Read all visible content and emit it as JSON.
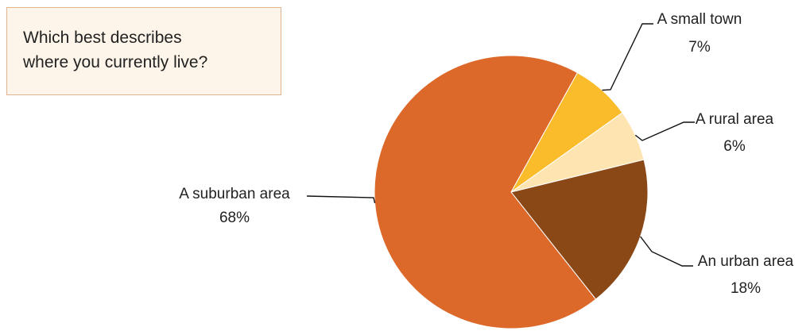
{
  "chart_data": {
    "type": "pie",
    "title_lines": [
      "Which best describes",
      "where you currently live?"
    ],
    "slices": [
      {
        "name": "A small town",
        "value": 7,
        "label": "7%",
        "color": "#fbbc2c"
      },
      {
        "name": "A rural area",
        "value": 6,
        "label": "6%",
        "color": "#fde4b0"
      },
      {
        "name": "An urban area",
        "value": 18,
        "label": "18%",
        "color": "#8b4817"
      },
      {
        "name": "A suburban area",
        "value": 68,
        "label": "68%",
        "color": "#dc6829"
      }
    ],
    "start_angle_deg": 29,
    "direction": "clockwise"
  }
}
